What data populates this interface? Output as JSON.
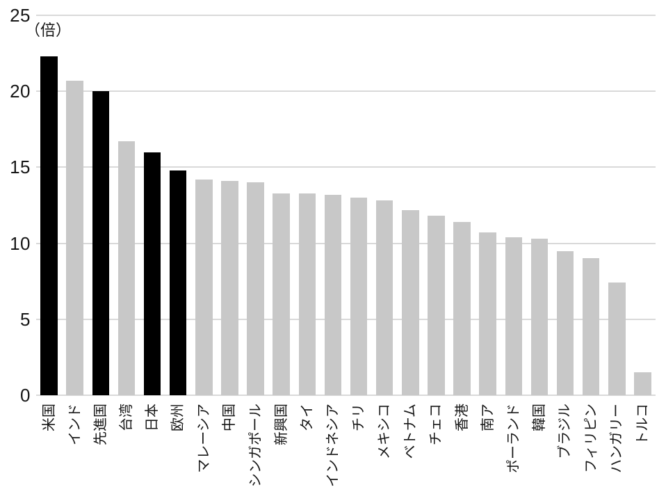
{
  "chart_data": {
    "type": "bar",
    "title": "",
    "unit_label": "（倍）",
    "xlabel": "",
    "ylabel": "",
    "ylim": [
      0,
      25
    ],
    "yticks": [
      0,
      5,
      10,
      15,
      20,
      25
    ],
    "grid": "horizontal",
    "legend": "none",
    "categories": [
      "米国",
      "インド",
      "先進国",
      "台湾",
      "日本",
      "欧州",
      "マレーシア",
      "中国",
      "シンガポール",
      "新興国",
      "タイ",
      "インドネシア",
      "チリ",
      "メキシコ",
      "ベトナム",
      "チェコ",
      "香港",
      "南ア",
      "ポーランド",
      "韓国",
      "ブラジル",
      "フィリピン",
      "ハンガリー",
      "トルコ"
    ],
    "values": [
      22.3,
      20.7,
      20.0,
      16.7,
      16.0,
      14.8,
      14.2,
      14.1,
      14.0,
      13.3,
      13.3,
      13.2,
      13.0,
      12.8,
      12.2,
      11.8,
      11.4,
      10.7,
      10.4,
      10.3,
      9.5,
      9.0,
      7.4,
      1.5
    ],
    "highlighted": [
      true,
      false,
      true,
      false,
      true,
      true,
      false,
      false,
      false,
      false,
      false,
      false,
      false,
      false,
      false,
      false,
      false,
      false,
      false,
      false,
      false,
      false,
      false,
      false
    ]
  },
  "colors": {
    "highlight_bar": "#000000",
    "default_bar": "#c8c8c8",
    "gridline": "#d9d9d9",
    "background": "#ffffff",
    "text": "#161616"
  }
}
